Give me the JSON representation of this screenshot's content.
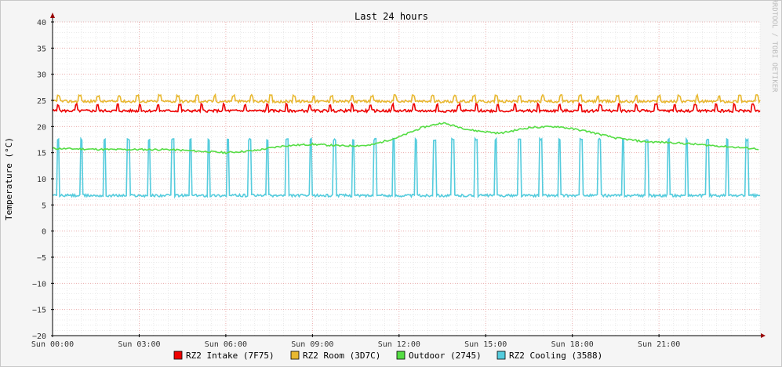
{
  "chart_data": {
    "type": "line",
    "title": "Last 24 hours",
    "ylabel": "Temperature (°C)",
    "watermark": "RRDTOOL / TOBI OETIKER",
    "ylim": [
      -20,
      40
    ],
    "yticks": [
      40,
      35,
      30,
      25,
      20,
      15,
      10,
      5,
      0,
      -5,
      -10,
      -15,
      -20
    ],
    "xlim_hours": [
      0,
      24.5
    ],
    "xticks": [
      {
        "label": "Sun 00:00",
        "hour": 0
      },
      {
        "label": "Sun 03:00",
        "hour": 3
      },
      {
        "label": "Sun 06:00",
        "hour": 6
      },
      {
        "label": "Sun 09:00",
        "hour": 9
      },
      {
        "label": "Sun 12:00",
        "hour": 12
      },
      {
        "label": "Sun 15:00",
        "hour": 15
      },
      {
        "label": "Sun 18:00",
        "hour": 18
      },
      {
        "label": "Sun 21:00",
        "hour": 21
      }
    ],
    "grid": true,
    "legend_position": "bottom",
    "series": [
      {
        "name": "RZ2 Intake (7F75)",
        "color": "#ee0000",
        "style": "spiky",
        "base": 23,
        "peak": 24.2,
        "period_hours": 0.7,
        "pulse_hours": 0.08
      },
      {
        "name": "RZ2 Room (3D7C)",
        "color": "#e8b830",
        "style": "spiky",
        "base": 24.8,
        "peak": 25.9,
        "period_hours": 0.7,
        "pulse_hours": 0.1
      },
      {
        "name": "Outdoor (2745)",
        "color": "#55dd44",
        "style": "smooth",
        "hours": [
          0,
          1,
          2,
          3,
          4,
          5,
          6,
          7,
          8,
          9,
          10,
          11,
          12,
          12.8,
          13.5,
          14.5,
          15.5,
          16.5,
          17.5,
          18.5,
          19.5,
          20.5,
          21.5,
          22.5,
          23.5,
          24.5
        ],
        "values": [
          15.8,
          15.7,
          15.6,
          15.6,
          15.6,
          15.3,
          15.0,
          15.4,
          16.3,
          16.6,
          16.3,
          16.4,
          18.0,
          19.8,
          20.7,
          19.3,
          18.7,
          19.8,
          20.0,
          19.1,
          17.8,
          17.1,
          16.9,
          16.5,
          16.1,
          15.7
        ]
      },
      {
        "name": "RZ2 Cooling (3588)",
        "color": "#55ccdd",
        "style": "spiky",
        "base": 6.8,
        "peak": 17.5,
        "period_hours": 0.72,
        "pulse_hours": 0.09
      }
    ]
  }
}
